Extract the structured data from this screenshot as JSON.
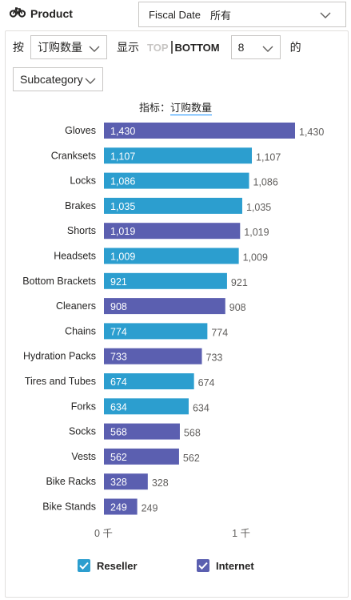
{
  "header": {
    "title": "Product",
    "icon": "bicycle-icon"
  },
  "fiscal_filter": {
    "label": "Fiscal Date",
    "value": "所有"
  },
  "controls": {
    "by_label": "按",
    "measure_value": "订购数量",
    "show_label": "显示",
    "top_label": "TOP",
    "bottom_label": "BOTTOM",
    "count_value": "8",
    "suffix": "的",
    "category_value": "Subcategory"
  },
  "metric": {
    "label": "指标：",
    "value": "订购数量"
  },
  "colors": {
    "reseller": "#2c9ecf",
    "internet": "#5b5fb0"
  },
  "chart_data": {
    "type": "bar",
    "orientation": "horizontal",
    "categories": [
      "Gloves",
      "Cranksets",
      "Locks",
      "Brakes",
      "Shorts",
      "Headsets",
      "Bottom Brackets",
      "Cleaners",
      "Chains",
      "Hydration Packs",
      "Tires and Tubes",
      "Forks",
      "Socks",
      "Vests",
      "Bike Racks",
      "Bike Stands"
    ],
    "values": [
      1430,
      1107,
      1086,
      1035,
      1019,
      1009,
      921,
      908,
      774,
      733,
      674,
      634,
      568,
      562,
      328,
      249
    ],
    "value_labels": [
      "1,430",
      "1,107",
      "1,086",
      "1,035",
      "1,019",
      "1,009",
      "921",
      "908",
      "774",
      "733",
      "674",
      "634",
      "568",
      "562",
      "328",
      "249"
    ],
    "bar_series": [
      "internet",
      "reseller",
      "reseller",
      "reseller",
      "internet",
      "reseller",
      "reseller",
      "internet",
      "reseller",
      "internet",
      "reseller",
      "reseller",
      "internet",
      "internet",
      "internet",
      "internet"
    ],
    "x_ticks": [
      0,
      1000
    ],
    "x_tick_labels": [
      "0 千",
      "1 千"
    ],
    "xlim": [
      0,
      1450
    ],
    "legend": [
      {
        "key": "reseller",
        "name": "Reseller"
      },
      {
        "key": "internet",
        "name": "Internet"
      }
    ]
  }
}
